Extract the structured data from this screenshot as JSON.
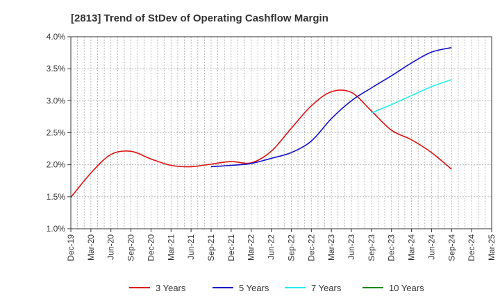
{
  "chart_data": {
    "type": "line",
    "title": "[2813]  Trend of StDev of Operating Cashflow Margin",
    "xlabel": "",
    "ylabel": "",
    "y_unit": "%",
    "ylim": [
      1.0,
      4.0
    ],
    "y_ticks": [
      "1.0%",
      "1.5%",
      "2.0%",
      "2.5%",
      "3.0%",
      "3.5%",
      "4.0%"
    ],
    "x_ticks": [
      "Dec-19",
      "Mar-20",
      "Jun-20",
      "Sep-20",
      "Dec-20",
      "Mar-21",
      "Jun-21",
      "Sep-21",
      "Dec-21",
      "Mar-22",
      "Jun-22",
      "Sep-22",
      "Dec-22",
      "Mar-23",
      "Jun-23",
      "Sep-23",
      "Dec-23",
      "Mar-24",
      "Jun-24",
      "Sep-24",
      "Dec-24",
      "Mar-25"
    ],
    "grid": true,
    "legend_position": "bottom",
    "series": [
      {
        "name": "3 Years",
        "color": "#dd1111",
        "x": [
          "Dec-19",
          "Mar-20",
          "Jun-20",
          "Sep-20",
          "Dec-20",
          "Mar-21",
          "Jun-21",
          "Sep-21",
          "Dec-21",
          "Mar-22",
          "Jun-22",
          "Sep-22",
          "Dec-22",
          "Mar-23",
          "Jun-23",
          "Sep-23",
          "Dec-23",
          "Mar-24",
          "Jun-24",
          "Sep-24"
        ],
        "values": [
          1.49,
          1.87,
          2.16,
          2.21,
          2.09,
          1.99,
          1.97,
          2.01,
          2.05,
          2.03,
          2.21,
          2.57,
          2.92,
          3.14,
          3.13,
          2.84,
          2.54,
          2.39,
          2.19,
          1.93
        ]
      },
      {
        "name": "5 Years",
        "color": "#1111cc",
        "x": [
          "Sep-21",
          "Dec-21",
          "Mar-22",
          "Jun-22",
          "Sep-22",
          "Dec-22",
          "Mar-23",
          "Jun-23",
          "Sep-23",
          "Dec-23",
          "Mar-24",
          "Jun-24",
          "Sep-24"
        ],
        "values": [
          1.97,
          1.99,
          2.02,
          2.1,
          2.19,
          2.37,
          2.72,
          3.0,
          3.2,
          3.39,
          3.59,
          3.76,
          3.83
        ]
      },
      {
        "name": "7 Years",
        "color": "#22eeee",
        "x": [
          "Sep-23",
          "Dec-23",
          "Mar-24",
          "Jun-24",
          "Sep-24"
        ],
        "values": [
          2.81,
          2.94,
          3.08,
          3.22,
          3.33
        ]
      },
      {
        "name": "10 Years",
        "color": "#118811",
        "x": [],
        "values": []
      }
    ]
  }
}
